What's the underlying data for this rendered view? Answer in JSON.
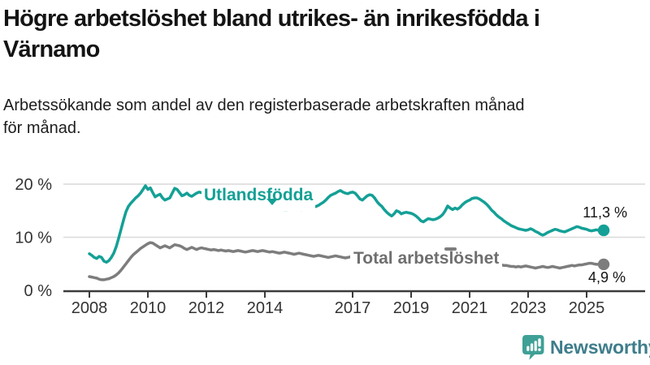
{
  "header": {
    "title_line1": "Högre arbetslöshet bland utrikes- än inrikesfödda i",
    "title_line2": "Värnamo",
    "subtitle_line1": "Arbetssökande som andel av den registerbaserade arbetskraften månad",
    "subtitle_line2": "för månad."
  },
  "chart_data": {
    "type": "line",
    "title": "Högre arbetslöshet bland utrikes- än inrikesfödda i Värnamo",
    "subtitle": "Arbetssökande som andel av den registerbaserade arbetskraften månad för månad.",
    "unit": "%",
    "x_interval": "monthly",
    "x_domain": [
      "2008-01",
      "2025-08"
    ],
    "ylim": [
      0,
      22
    ],
    "grid": "horizontal",
    "legend_position": "inline-labels",
    "y_ticks": [
      {
        "value": 20,
        "label": "20 %"
      },
      {
        "value": 10,
        "label": "10 %"
      },
      {
        "value": 0,
        "label": "0 %"
      }
    ],
    "x_ticks": [
      {
        "year": 2008,
        "label": "2008"
      },
      {
        "year": 2010,
        "label": "2010"
      },
      {
        "year": 2012,
        "label": "2012"
      },
      {
        "year": 2014,
        "label": "2014"
      },
      {
        "year": 2017,
        "label": "2017"
      },
      {
        "year": 2019,
        "label": "2019"
      },
      {
        "year": 2021,
        "label": "2021"
      },
      {
        "year": 2023,
        "label": "2023"
      },
      {
        "year": 2025,
        "label": "2025"
      }
    ],
    "series": [
      {
        "id": "utlandsfodda",
        "name": "Utlandsfödda",
        "color": "#14a096",
        "end_value": 11.3,
        "end_label": "11,3 %",
        "values": [
          6.9,
          6.6,
          6.2,
          6.0,
          6.4,
          6.2,
          5.5,
          5.3,
          5.6,
          6.2,
          7.0,
          8.2,
          9.8,
          11.5,
          13.2,
          14.8,
          15.8,
          16.4,
          16.9,
          17.4,
          17.8,
          18.3,
          19.0,
          19.7,
          19.0,
          19.3,
          18.4,
          17.6,
          17.9,
          18.1,
          17.4,
          17.0,
          17.2,
          17.4,
          18.3,
          19.2,
          19.0,
          18.4,
          17.8,
          18.0,
          18.3,
          17.9,
          17.7,
          18.0,
          18.3,
          18.5,
          18.4,
          18.3,
          18.2,
          18.0,
          17.9,
          17.7,
          17.6,
          17.5,
          17.4,
          17.3,
          17.2,
          17.1,
          17.0,
          16.9,
          16.9,
          16.8,
          16.7,
          16.6,
          16.5,
          16.4,
          16.3,
          16.2,
          16.1,
          16.0,
          15.9,
          15.8,
          15.8,
          15.7,
          15.6,
          15.5,
          15.4,
          15.4,
          15.3,
          15.3,
          15.2,
          15.2,
          15.3,
          15.4,
          15.5,
          15.4,
          15.3,
          15.2,
          15.3,
          15.4,
          15.5,
          15.6,
          15.7,
          15.8,
          16.0,
          16.3,
          16.6,
          17.0,
          17.5,
          17.9,
          18.1,
          18.3,
          18.6,
          18.8,
          18.5,
          18.3,
          18.2,
          18.4,
          18.5,
          18.3,
          17.8,
          17.2,
          17.0,
          17.4,
          17.8,
          18.0,
          17.9,
          17.4,
          16.7,
          16.2,
          15.8,
          15.2,
          14.7,
          14.3,
          14.0,
          14.4,
          15.0,
          14.8,
          14.4,
          14.6,
          14.7,
          14.6,
          14.5,
          14.3,
          14.0,
          13.6,
          13.1,
          12.9,
          13.2,
          13.5,
          13.4,
          13.3,
          13.4,
          13.6,
          13.9,
          14.3,
          15.0,
          15.9,
          15.5,
          15.2,
          15.5,
          15.3,
          15.6,
          16.1,
          16.5,
          16.8,
          17.0,
          17.3,
          17.4,
          17.4,
          17.2,
          16.9,
          16.6,
          16.2,
          15.7,
          15.1,
          14.7,
          14.2,
          13.8,
          13.5,
          13.1,
          12.8,
          12.5,
          12.2,
          12.0,
          11.8,
          11.6,
          11.5,
          11.4,
          11.3,
          11.4,
          11.6,
          11.4,
          11.1,
          10.9,
          10.6,
          10.4,
          10.6,
          10.9,
          11.1,
          11.3,
          11.5,
          11.4,
          11.2,
          11.1,
          11.0,
          11.2,
          11.4,
          11.6,
          11.8,
          12.0,
          11.9,
          11.7,
          11.6,
          11.5,
          11.3,
          11.2,
          11.3,
          11.4,
          11.3,
          11.2,
          11.3
        ]
      },
      {
        "id": "total",
        "name": "Total arbetslöshet",
        "color": "#7d7d7d",
        "end_value": 4.9,
        "end_label": "4,9 %",
        "values": [
          2.6,
          2.5,
          2.4,
          2.3,
          2.1,
          2.0,
          2.0,
          2.1,
          2.2,
          2.4,
          2.6,
          2.9,
          3.3,
          3.8,
          4.4,
          5.0,
          5.6,
          6.2,
          6.7,
          7.1,
          7.5,
          7.9,
          8.2,
          8.5,
          8.8,
          9.0,
          8.9,
          8.6,
          8.3,
          8.0,
          8.2,
          8.4,
          8.2,
          8.0,
          8.3,
          8.6,
          8.5,
          8.4,
          8.2,
          7.9,
          7.7,
          7.9,
          8.1,
          7.9,
          7.7,
          7.9,
          8.0,
          7.9,
          7.8,
          7.7,
          7.6,
          7.7,
          7.6,
          7.5,
          7.6,
          7.5,
          7.4,
          7.5,
          7.4,
          7.3,
          7.4,
          7.5,
          7.4,
          7.3,
          7.2,
          7.3,
          7.4,
          7.5,
          7.4,
          7.3,
          7.4,
          7.5,
          7.4,
          7.3,
          7.2,
          7.3,
          7.2,
          7.1,
          7.0,
          7.1,
          7.2,
          7.1,
          7.0,
          6.9,
          6.8,
          6.9,
          7.0,
          6.9,
          6.8,
          6.7,
          6.6,
          6.5,
          6.4,
          6.5,
          6.6,
          6.5,
          6.4,
          6.3,
          6.2,
          6.3,
          6.4,
          6.5,
          6.4,
          6.3,
          6.2,
          6.1,
          6.2,
          6.3,
          6.4,
          6.3,
          6.2,
          6.1,
          6.0,
          6.1,
          6.2,
          6.1,
          6.0,
          5.9,
          5.8,
          5.9,
          6.0,
          5.9,
          5.8,
          5.7,
          5.6,
          5.5,
          5.6,
          5.7,
          5.6,
          5.5,
          5.4,
          5.5,
          5.6,
          5.5,
          5.4,
          5.5,
          5.6,
          5.5,
          5.6,
          5.7,
          5.8,
          5.9,
          6.0,
          6.1,
          6.3,
          6.6,
          7.0,
          7.4,
          7.6,
          7.5,
          7.4,
          7.3,
          7.2,
          7.1,
          7.0,
          6.9,
          6.8,
          6.7,
          6.5,
          6.3,
          6.1,
          5.9,
          5.7,
          5.5,
          5.3,
          5.2,
          5.1,
          5.0,
          4.9,
          4.8,
          4.7,
          4.7,
          4.6,
          4.5,
          4.5,
          4.4,
          4.5,
          4.4,
          4.5,
          4.6,
          4.5,
          4.4,
          4.3,
          4.2,
          4.3,
          4.4,
          4.5,
          4.4,
          4.3,
          4.4,
          4.5,
          4.4,
          4.3,
          4.2,
          4.3,
          4.4,
          4.5,
          4.6,
          4.7,
          4.6,
          4.7,
          4.8,
          4.8,
          4.9,
          5.0,
          5.1,
          5.1,
          5.0,
          4.9,
          4.9,
          4.9,
          4.9
        ]
      }
    ]
  },
  "footer": {
    "brand": "Newsworthy"
  },
  "colors": {
    "accent_teal": "#14a096",
    "series_gray": "#7d7d7d",
    "gridline": "#d9d9d9",
    "axis": "#3b3b3b",
    "tick_text": "#333333",
    "logo_icon": "#3fa096",
    "logo_text": "#3e7d8b"
  }
}
